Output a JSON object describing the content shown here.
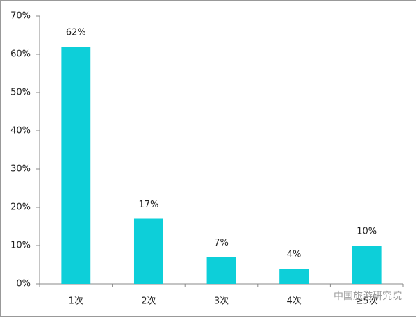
{
  "chart_data": {
    "type": "bar",
    "categories": [
      "1次",
      "2次",
      "3次",
      "4次",
      "≥5次"
    ],
    "values": [
      62,
      17,
      7,
      4,
      10
    ],
    "value_labels": [
      "62%",
      "17%",
      "7%",
      "4%",
      "10%"
    ],
    "color": "#0dcfd9",
    "ylim": [
      0,
      70
    ],
    "yticks": [
      {
        "value": 0,
        "label": "0%"
      },
      {
        "value": 10,
        "label": "10%"
      },
      {
        "value": 20,
        "label": "20%"
      },
      {
        "value": 30,
        "label": "30%"
      },
      {
        "value": 40,
        "label": "40%"
      },
      {
        "value": 50,
        "label": "50%"
      },
      {
        "value": 60,
        "label": "60%"
      },
      {
        "value": 70,
        "label": "70%"
      }
    ],
    "watermark": "中国旅游研究院"
  }
}
